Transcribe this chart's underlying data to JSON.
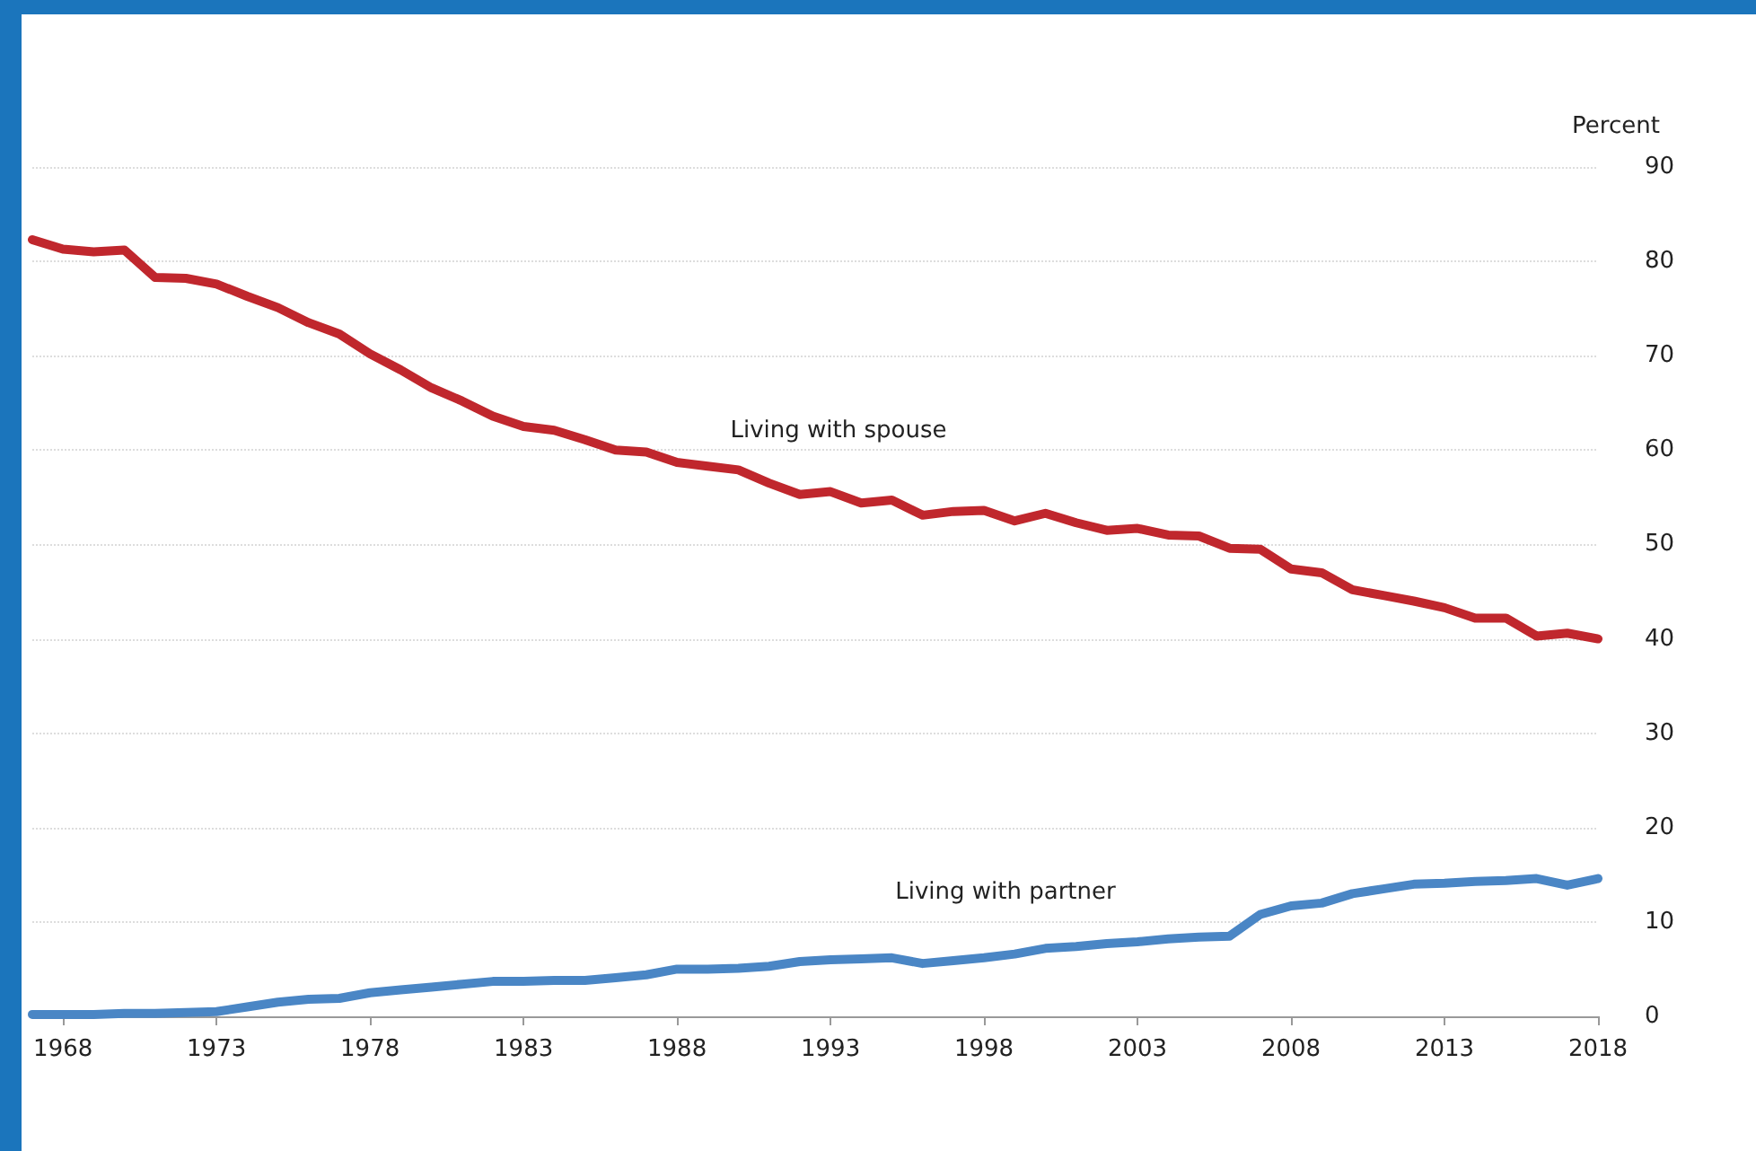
{
  "chart_data": {
    "type": "line",
    "ylabel": "Percent",
    "x": [
      1967,
      1968,
      1969,
      1970,
      1971,
      1972,
      1973,
      1974,
      1975,
      1976,
      1977,
      1978,
      1979,
      1980,
      1981,
      1982,
      1983,
      1984,
      1985,
      1986,
      1987,
      1988,
      1989,
      1990,
      1991,
      1992,
      1993,
      1994,
      1995,
      1996,
      1997,
      1998,
      1999,
      2000,
      2001,
      2002,
      2003,
      2004,
      2005,
      2006,
      2007,
      2008,
      2009,
      2010,
      2011,
      2012,
      2013,
      2014,
      2015,
      2016,
      2017,
      2018
    ],
    "series": [
      {
        "color": "#c0272d",
        "values": [
          82.3,
          81.3,
          81.0,
          81.2,
          78.3,
          78.2,
          77.6,
          76.3,
          75.1,
          73.5,
          72.3,
          70.2,
          68.5,
          66.6,
          65.2,
          63.6,
          62.5,
          62.1,
          61.1,
          60.0,
          59.8,
          58.7,
          58.3,
          57.9,
          56.5,
          55.3,
          55.6,
          54.4,
          54.7,
          53.1,
          53.5,
          53.6,
          52.5,
          53.3,
          52.3,
          51.5,
          51.7,
          51.0,
          50.9,
          49.6,
          49.5,
          47.4,
          47.0,
          45.2,
          44.6,
          44.0,
          43.3,
          42.2,
          42.2,
          40.3,
          40.6,
          40.0
        ]
      },
      {
        "color": "#4a86c5",
        "values": [
          0.2,
          0.2,
          0.2,
          0.3,
          0.3,
          0.4,
          0.5,
          1.0,
          1.5,
          1.8,
          1.9,
          2.5,
          2.8,
          3.1,
          3.4,
          3.7,
          3.7,
          3.8,
          3.8,
          4.1,
          4.4,
          5.0,
          5.0,
          5.1,
          5.3,
          5.8,
          6.0,
          6.1,
          6.2,
          5.6,
          5.9,
          6.2,
          6.6,
          7.2,
          7.4,
          7.7,
          7.9,
          8.2,
          8.4,
          8.5,
          10.8,
          11.7,
          12.0,
          13.0,
          13.5,
          14.0,
          14.1,
          14.3,
          14.4,
          14.6,
          13.9,
          14.6
        ]
      }
    ],
    "annotations": [
      "Living with spouse",
      "Living with partner"
    ],
    "xlim": [
      1967,
      2018
    ],
    "xticks": [
      1968,
      1973,
      1978,
      1983,
      1988,
      1993,
      1998,
      2003,
      2008,
      2013,
      2018
    ],
    "ylim": [
      0,
      90
    ],
    "yticks": [
      0,
      10,
      20,
      30,
      40,
      50,
      60,
      70,
      80,
      90
    ],
    "grid": "y",
    "marker": "none",
    "line_style": "solid"
  }
}
